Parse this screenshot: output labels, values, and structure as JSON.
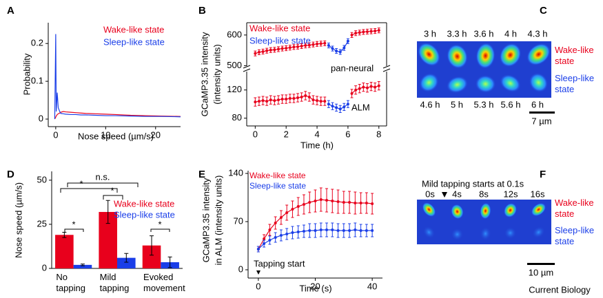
{
  "panel_labels": [
    "A",
    "B",
    "C",
    "D",
    "E",
    "F"
  ],
  "footer": "Current Biology",
  "chart_data": [
    {
      "type": "line",
      "xlabel": "Nose speed (µm/s)",
      "ylabel": "Probability",
      "xlim": [
        -1.5,
        25
      ],
      "xticks": [
        0,
        10,
        20
      ],
      "ylim": [
        -0.02,
        0.255
      ],
      "yticks": [
        0,
        0.1,
        0.2
      ],
      "x": [
        -0.2,
        0,
        0.1,
        0.3,
        0.5,
        0.8,
        1,
        1.5,
        2,
        3,
        4,
        5,
        6,
        8,
        10,
        12,
        15,
        18,
        21,
        25
      ],
      "series": [
        {
          "name": "Wake-like state",
          "color": "#e8001c",
          "values": [
            0,
            0.005,
            0.008,
            0.012,
            0.014,
            0.016,
            0.018,
            0.02,
            0.019,
            0.018,
            0.017,
            0.016,
            0.015,
            0.014,
            0.013,
            0.012,
            0.01,
            0.009,
            0.008,
            0.007
          ]
        },
        {
          "name": "Sleep-like state",
          "color": "#1a3ee8",
          "values": [
            0,
            0.225,
            0.02,
            0.07,
            0.03,
            0.02,
            0.015,
            0.014,
            0.013,
            0.012,
            0.012,
            0.011,
            0.011,
            0.01,
            0.009,
            0.009,
            0.008,
            0.007,
            0.007,
            0.006
          ]
        }
      ]
    },
    {
      "type": "line",
      "ylabel": [
        "GCaMP3.35 intensity",
        "(intensity units)"
      ],
      "xlim": [
        -0.55,
        8.5
      ],
      "ylim": [
        490,
        640
      ],
      "yticks": [
        500,
        600
      ],
      "x": [
        0,
        0.25,
        0.5,
        0.75,
        1,
        1.25,
        1.5,
        1.75,
        2,
        2.25,
        2.5,
        2.75,
        3,
        3.25,
        3.5,
        3.75,
        4,
        4.25,
        4.5,
        4.75,
        5,
        5.25,
        5.5,
        5.75,
        6,
        6.25,
        6.5,
        6.75,
        7,
        7.25,
        7.5,
        7.75,
        8
      ],
      "annotations": [
        "pan-neural"
      ],
      "series": [
        {
          "name": "Wake-like state",
          "color": "#e8001c",
          "values": [
            540,
            544,
            546,
            549,
            551,
            552,
            554,
            556,
            557,
            559,
            561,
            562,
            564,
            566,
            567,
            569,
            571,
            572,
            573,
            null,
            null,
            null,
            null,
            null,
            null,
            600,
            606,
            608,
            610,
            611,
            612,
            613,
            615
          ],
          "errors": [
            8,
            8,
            8,
            8,
            8,
            8,
            8,
            8,
            8,
            8,
            8,
            8,
            8,
            8,
            8,
            8,
            8,
            8,
            8,
            null,
            null,
            null,
            null,
            null,
            null,
            8,
            8,
            8,
            8,
            8,
            8,
            8,
            8
          ]
        },
        {
          "name": "Sleep-like state",
          "color": "#1a3ee8",
          "values": [
            null,
            null,
            null,
            null,
            null,
            null,
            null,
            null,
            null,
            null,
            null,
            null,
            null,
            null,
            null,
            null,
            null,
            null,
            null,
            566,
            556,
            548,
            545,
            558,
            580,
            null,
            null,
            null,
            null,
            null,
            null,
            null,
            null
          ],
          "errors": [
            null,
            null,
            null,
            null,
            null,
            null,
            null,
            null,
            null,
            null,
            null,
            null,
            null,
            null,
            null,
            null,
            null,
            null,
            null,
            8,
            8,
            8,
            8,
            8,
            8,
            null,
            null,
            null,
            null,
            null,
            null,
            null,
            null
          ]
        }
      ]
    },
    {
      "type": "line",
      "xlabel": "Time (h)",
      "xlim": [
        -0.55,
        8.5
      ],
      "xticks": [
        0,
        2,
        4,
        6,
        8
      ],
      "ylim": [
        69,
        150
      ],
      "yticks": [
        80,
        120
      ],
      "x": [
        0,
        0.25,
        0.5,
        0.75,
        1,
        1.25,
        1.5,
        1.75,
        2,
        2.25,
        2.5,
        2.75,
        3,
        3.25,
        3.5,
        3.75,
        4,
        4.25,
        4.5,
        4.75,
        5,
        5.25,
        5.5,
        5.75,
        6,
        6.25,
        6.5,
        6.75,
        7,
        7.25,
        7.5,
        7.75,
        8
      ],
      "annotations": [
        "ALM"
      ],
      "series": [
        {
          "color": "#e8001c",
          "values": [
            103,
            104,
            105,
            104,
            106,
            105,
            106,
            107,
            107,
            108,
            108,
            109,
            110,
            112,
            110,
            106,
            105,
            104,
            104,
            null,
            null,
            null,
            null,
            null,
            null,
            115,
            120,
            122,
            124,
            123,
            125,
            124,
            126
          ],
          "errors": [
            6,
            6,
            6,
            6,
            6,
            6,
            6,
            6,
            6,
            6,
            6,
            6,
            6,
            6,
            6,
            6,
            6,
            6,
            6,
            null,
            null,
            null,
            null,
            null,
            null,
            6,
            6,
            6,
            6,
            6,
            6,
            6,
            6
          ]
        },
        {
          "color": "#1a3ee8",
          "values": [
            null,
            null,
            null,
            null,
            null,
            null,
            null,
            null,
            null,
            null,
            null,
            null,
            null,
            null,
            null,
            null,
            null,
            null,
            null,
            100,
            97,
            95,
            93,
            96,
            100,
            null,
            null,
            null,
            null,
            null,
            null,
            null,
            null
          ],
          "errors": [
            null,
            null,
            null,
            null,
            null,
            null,
            null,
            null,
            null,
            null,
            null,
            null,
            null,
            null,
            null,
            null,
            null,
            null,
            null,
            5,
            5,
            5,
            5,
            5,
            5,
            null,
            null,
            null,
            null,
            null,
            null,
            null,
            null
          ]
        }
      ]
    },
    {
      "type": "bar",
      "ylabel": "Nose speed (µm/s)",
      "categories": [
        "No tapping",
        "Mild tapping",
        "Evoked movement"
      ],
      "ylim": [
        0,
        55
      ],
      "yticks": [
        0,
        25,
        50
      ],
      "annotations": [
        "*",
        "n.s.",
        "*",
        "*",
        "*"
      ],
      "series": [
        {
          "name": "Wake-like state",
          "color": "#e8001c",
          "values": [
            19,
            32,
            13
          ],
          "errors": [
            1.5,
            6.5,
            5.5
          ]
        },
        {
          "name": "Sleep-like state",
          "color": "#1a3ee8",
          "values": [
            2,
            6,
            3.5
          ],
          "errors": [
            0.5,
            2.5,
            3
          ]
        }
      ]
    },
    {
      "type": "line",
      "xlabel": "Time (s)",
      "ylabel": [
        "GCaMP3.35 intensity",
        "in ALM (intensity units)"
      ],
      "xlim": [
        -3.6,
        43.6
      ],
      "xticks": [
        0,
        20,
        40
      ],
      "ylim": [
        -12,
        144
      ],
      "yticks": [
        0,
        70,
        140
      ],
      "annotations": [
        "Tapping start"
      ],
      "x": [
        0,
        2,
        4,
        6,
        8,
        10,
        12,
        14,
        16,
        18,
        20,
        22,
        24,
        26,
        28,
        30,
        32,
        34,
        36,
        38,
        40
      ],
      "series": [
        {
          "name": "Wake-like state",
          "color": "#e8001c",
          "values": [
            30,
            45,
            58,
            68,
            76,
            83,
            88,
            92,
            95,
            98,
            100,
            102,
            101,
            100,
            99,
            98,
            98,
            97,
            97,
            97,
            96
          ],
          "errors": [
            4,
            6,
            8,
            9,
            10,
            11,
            12,
            13,
            14,
            15,
            16,
            17,
            17,
            17,
            17,
            16,
            16,
            16,
            15,
            15,
            15
          ]
        },
        {
          "name": "Sleep-like state",
          "color": "#1a3ee8",
          "values": [
            30,
            38,
            43,
            47,
            50,
            52,
            54,
            55,
            56,
            57,
            57,
            58,
            58,
            58,
            57,
            57,
            57,
            58,
            57,
            57,
            57
          ],
          "errors": [
            4,
            5,
            6,
            7,
            8,
            8,
            9,
            9,
            9,
            10,
            10,
            10,
            10,
            10,
            10,
            10,
            10,
            10,
            9,
            9,
            9
          ]
        }
      ]
    }
  ],
  "image_panels": {
    "C": {
      "times_top": [
        "3 h",
        "3.3 h",
        "3.6 h",
        "4 h",
        "4.3 h"
      ],
      "times_bottom": [
        "4.6 h",
        "5 h",
        "5.3 h",
        "5.6 h",
        "6 h"
      ],
      "rows": [
        "Wake-like state",
        "Sleep-like state"
      ],
      "scale": "7 µm"
    },
    "F": {
      "title": "Mild tapping starts at 0.1s",
      "times": [
        "0s",
        "4s",
        "8s",
        "12s",
        "16s"
      ],
      "rows": [
        "Wake-like state",
        "Sleep-like state"
      ],
      "scale": "10 µm"
    }
  }
}
